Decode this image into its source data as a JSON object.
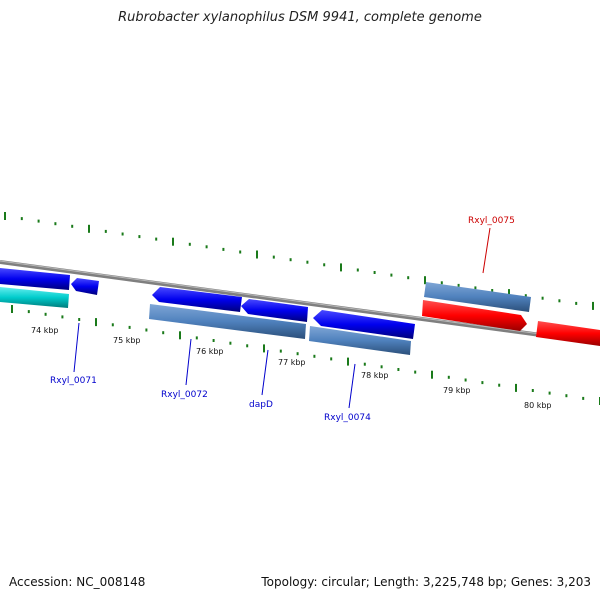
{
  "title": "Rubrobacter xylanophilus DSM 9941, complete genome",
  "footer": {
    "accession": "Accession: NC_008148",
    "stats": "Topology: circular; Length: 3,225,748 bp; Genes: 3,203"
  },
  "kbp_labels": [
    "74 kbp",
    "75 kbp",
    "76 kbp",
    "77 kbp",
    "78 kbp",
    "79 kbp",
    "80 kbp"
  ],
  "gene_labels": [
    "Rxyl_0071",
    "Rxyl_0072",
    "dapD",
    "Rxyl_0074",
    "Rxyl_0075"
  ],
  "colors": {
    "backbone": "#7f7f7f",
    "tick": "#1a7a1a",
    "forward_gene": "#ff0000",
    "reverse_gene": "#0000ee",
    "cds": "#4f81bd",
    "rna": "#00cccc",
    "label_forward": "#cc0000",
    "label_reverse": "#0000cc"
  }
}
